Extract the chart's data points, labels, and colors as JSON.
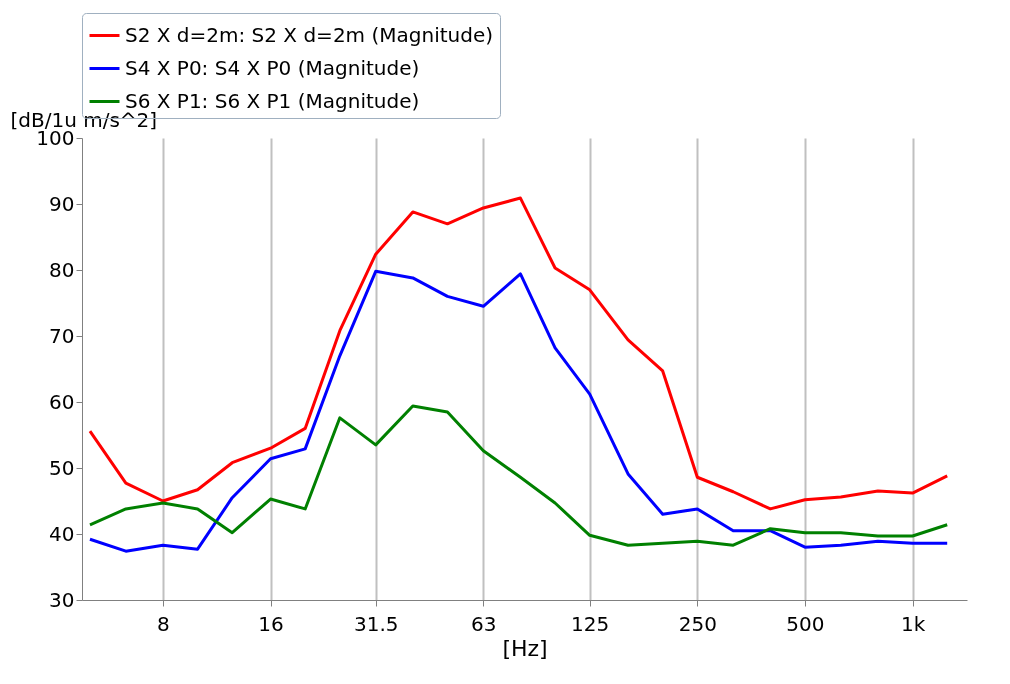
{
  "chart_data": {
    "type": "line",
    "xlabel": "[Hz]",
    "ylabel": "[dB/1u m/s^2]",
    "x": [
      5,
      6.3,
      8,
      10,
      12.5,
      16,
      20,
      25,
      31.5,
      40,
      50,
      63,
      80,
      100,
      125,
      160,
      200,
      250,
      315,
      400,
      500,
      630,
      800,
      1000,
      1250
    ],
    "series": [
      {
        "name": "S2 X d=2m: S2 X d=2m (Magnitude)",
        "color": "#ff0000",
        "values": [
          55.6,
          47.7,
          45,
          46.7,
          50.8,
          53,
          56,
          70.8,
          82.4,
          88.8,
          87,
          89.4,
          90.9,
          80.3,
          77,
          69.4,
          64.7,
          48.6,
          46.4,
          43.8,
          45.2,
          45.6,
          46.5,
          46.2,
          48.8
        ]
      },
      {
        "name": "S4 X P0: S4 X P0 (Magnitude)",
        "color": "#0000ff",
        "values": [
          39.2,
          37.4,
          38.3,
          37.7,
          45.5,
          51.4,
          52.9,
          67,
          79.8,
          78.8,
          76,
          74.5,
          79.4,
          68.2,
          61.2,
          49.1,
          43,
          43.8,
          40.5,
          40.5,
          38,
          38.3,
          38.9,
          38.6,
          38.6
        ]
      },
      {
        "name": "S6 X P1: S6 X P1 (Magnitude)",
        "color": "#008000",
        "values": [
          41.4,
          43.8,
          44.7,
          43.8,
          40.2,
          45.3,
          43.8,
          57.6,
          53.5,
          59.4,
          58.5,
          52.6,
          48.6,
          44.7,
          39.8,
          38.3,
          38.6,
          38.9,
          38.3,
          40.8,
          40.2,
          40.2,
          39.7,
          39.7,
          41.4
        ]
      }
    ],
    "log": "x",
    "xlim": [
      4.75,
      1420
    ],
    "xticks": [
      8,
      16,
      31.5,
      63,
      125,
      250,
      500,
      {
        "value": 1000,
        "label": "1k"
      }
    ],
    "ylim": [
      30,
      100
    ],
    "yticks": [
      30,
      40,
      50,
      60,
      70,
      80,
      90,
      100
    ],
    "grid": "x",
    "legend": "top left"
  }
}
